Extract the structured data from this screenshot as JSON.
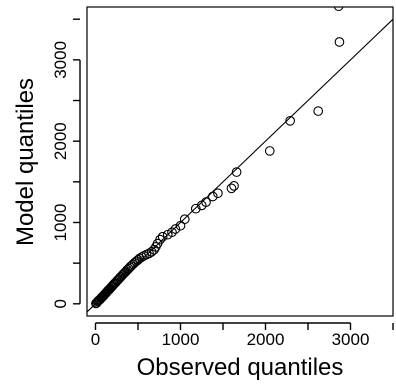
{
  "chart_data": {
    "type": "scatter",
    "title": "",
    "xlabel": "Observed quantiles",
    "ylabel": "Model quantiles",
    "xlim": [
      -100,
      3500
    ],
    "ylim": [
      -150,
      3650
    ],
    "xticks": [
      0,
      1000,
      2000,
      3000
    ],
    "yticks": [
      0,
      1000,
      2000,
      3000
    ],
    "xtick_labels": [
      "0",
      "1000",
      "2000",
      "3000"
    ],
    "ytick_labels": [
      "0",
      "1000",
      "2000",
      "3000"
    ],
    "reference_line": "y = x",
    "grid": false,
    "points": [
      {
        "x": 5,
        "y": 5
      },
      {
        "x": 15,
        "y": 12
      },
      {
        "x": 25,
        "y": 28
      },
      {
        "x": 35,
        "y": 38
      },
      {
        "x": 45,
        "y": 48
      },
      {
        "x": 55,
        "y": 55
      },
      {
        "x": 65,
        "y": 68
      },
      {
        "x": 75,
        "y": 80
      },
      {
        "x": 85,
        "y": 90
      },
      {
        "x": 95,
        "y": 100
      },
      {
        "x": 105,
        "y": 112
      },
      {
        "x": 115,
        "y": 125
      },
      {
        "x": 125,
        "y": 135
      },
      {
        "x": 135,
        "y": 148
      },
      {
        "x": 145,
        "y": 160
      },
      {
        "x": 155,
        "y": 170
      },
      {
        "x": 165,
        "y": 180
      },
      {
        "x": 175,
        "y": 192
      },
      {
        "x": 185,
        "y": 205
      },
      {
        "x": 195,
        "y": 215
      },
      {
        "x": 205,
        "y": 228
      },
      {
        "x": 215,
        "y": 240
      },
      {
        "x": 225,
        "y": 250
      },
      {
        "x": 240,
        "y": 265
      },
      {
        "x": 255,
        "y": 285
      },
      {
        "x": 270,
        "y": 300
      },
      {
        "x": 285,
        "y": 318
      },
      {
        "x": 300,
        "y": 335
      },
      {
        "x": 315,
        "y": 352
      },
      {
        "x": 330,
        "y": 368
      },
      {
        "x": 345,
        "y": 385
      },
      {
        "x": 360,
        "y": 400
      },
      {
        "x": 375,
        "y": 418
      },
      {
        "x": 390,
        "y": 432
      },
      {
        "x": 405,
        "y": 450
      },
      {
        "x": 420,
        "y": 465
      },
      {
        "x": 440,
        "y": 485
      },
      {
        "x": 460,
        "y": 505
      },
      {
        "x": 480,
        "y": 522
      },
      {
        "x": 500,
        "y": 540
      },
      {
        "x": 520,
        "y": 558
      },
      {
        "x": 545,
        "y": 575
      },
      {
        "x": 570,
        "y": 590
      },
      {
        "x": 600,
        "y": 605
      },
      {
        "x": 630,
        "y": 620
      },
      {
        "x": 660,
        "y": 640
      },
      {
        "x": 690,
        "y": 665
      },
      {
        "x": 710,
        "y": 700
      },
      {
        "x": 730,
        "y": 740
      },
      {
        "x": 760,
        "y": 790
      },
      {
        "x": 790,
        "y": 825
      },
      {
        "x": 850,
        "y": 850
      },
      {
        "x": 900,
        "y": 880
      },
      {
        "x": 940,
        "y": 920
      },
      {
        "x": 1000,
        "y": 960
      },
      {
        "x": 1050,
        "y": 1040
      },
      {
        "x": 1180,
        "y": 1170
      },
      {
        "x": 1250,
        "y": 1210
      },
      {
        "x": 1300,
        "y": 1250
      },
      {
        "x": 1380,
        "y": 1320
      },
      {
        "x": 1440,
        "y": 1360
      },
      {
        "x": 1600,
        "y": 1420
      },
      {
        "x": 1630,
        "y": 1450
      },
      {
        "x": 1660,
        "y": 1620
      },
      {
        "x": 2050,
        "y": 1880
      },
      {
        "x": 2290,
        "y": 2250
      },
      {
        "x": 2620,
        "y": 2370
      },
      {
        "x": 2870,
        "y": 3220
      },
      {
        "x": 2860,
        "y": 3660
      }
    ]
  }
}
